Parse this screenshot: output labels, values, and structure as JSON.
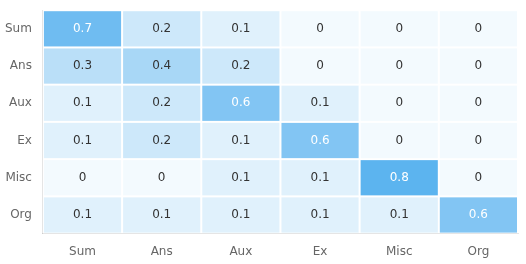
{
  "chart_data": {
    "type": "heatmap",
    "categories": [
      "Sum",
      "Ans",
      "Aux",
      "Ex",
      "Misc",
      "Org"
    ],
    "values": [
      [
        0.7,
        0.2,
        0.1,
        0.0,
        0.0,
        0.0
      ],
      [
        0.3,
        0.4,
        0.2,
        0.0,
        0.0,
        0.0
      ],
      [
        0.1,
        0.2,
        0.6,
        0.1,
        0.0,
        0.0
      ],
      [
        0.1,
        0.2,
        0.1,
        0.6,
        0.0,
        0.0
      ],
      [
        0.0,
        0.0,
        0.1,
        0.1,
        0.8,
        0.0
      ],
      [
        0.1,
        0.1,
        0.1,
        0.1,
        0.1,
        0.6
      ]
    ],
    "data_labels": true,
    "grid": false
  }
}
